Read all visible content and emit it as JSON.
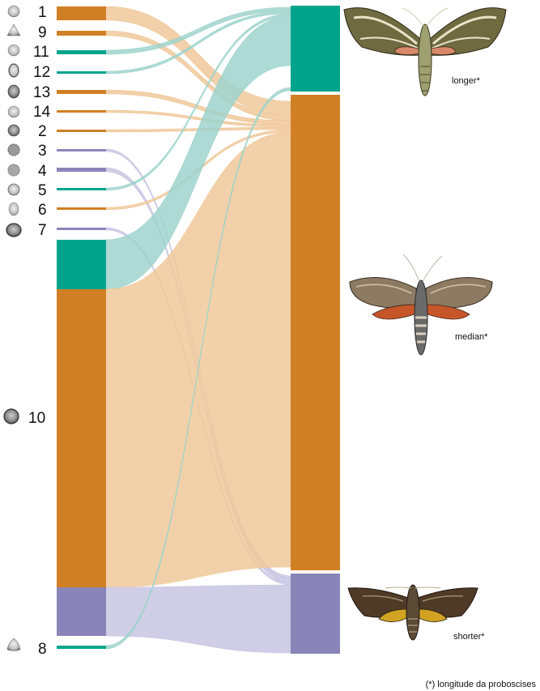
{
  "colors": {
    "teal": "#00a48c",
    "orange": "#d17f25",
    "purple": "#8a85b8"
  },
  "sources": [
    {
      "label": "1",
      "group": "orange"
    },
    {
      "label": "9",
      "group": "orange"
    },
    {
      "label": "11",
      "group": "teal"
    },
    {
      "label": "12",
      "group": "teal"
    },
    {
      "label": "13",
      "group": "orange"
    },
    {
      "label": "14",
      "group": "orange"
    },
    {
      "label": "2",
      "group": "orange"
    },
    {
      "label": "3",
      "group": "purple"
    },
    {
      "label": "4",
      "group": "purple"
    },
    {
      "label": "5",
      "group": "teal"
    },
    {
      "label": "6",
      "group": "orange"
    },
    {
      "label": "7",
      "group": "purple"
    },
    {
      "label": "10",
      "group": "mixed"
    },
    {
      "label": "8",
      "group": "teal"
    }
  ],
  "targets": [
    {
      "label": "longer*",
      "color": "teal"
    },
    {
      "label": "median*",
      "color": "orange"
    },
    {
      "label": "shorter*",
      "color": "purple"
    }
  ],
  "footnote": "(*) longitude da proboscises"
}
